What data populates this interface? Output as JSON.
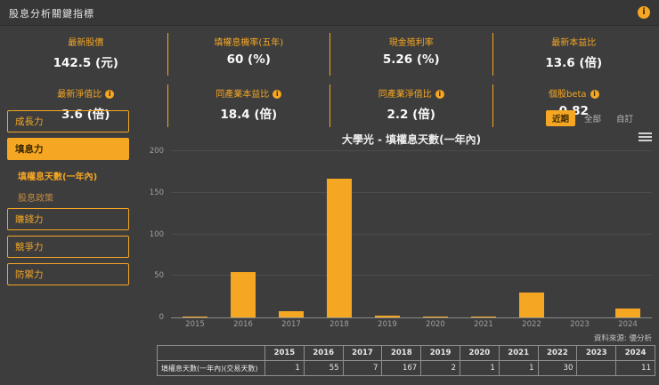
{
  "header": {
    "title": "股息分析關鍵指標",
    "info_label": "i"
  },
  "kpis": {
    "row1": [
      {
        "label": "最新股價",
        "value": "142.5 (元)",
        "has_info": false
      },
      {
        "label": "填權息機率(五年)",
        "value": "60 (%)",
        "has_info": false
      },
      {
        "label": "現金殖利率",
        "value": "5.26 (%)",
        "has_info": false
      },
      {
        "label": "最新本益比",
        "value": "13.6 (倍)",
        "has_info": false
      }
    ],
    "row2": [
      {
        "label": "最新淨值比",
        "value": "3.6 (倍)",
        "has_info": true
      },
      {
        "label": "同產業本益比",
        "value": "18.4 (倍)",
        "has_info": true
      },
      {
        "label": "同產業淨值比",
        "value": "2.2 (倍)",
        "has_info": true
      },
      {
        "label": "個股beta",
        "value": "0.82",
        "has_info": true
      }
    ]
  },
  "sidebar": {
    "entries": [
      {
        "label": "成長力",
        "type": "button",
        "active": false
      },
      {
        "label": "填息力",
        "type": "button",
        "active": true
      },
      {
        "label": "填權息天數(一年內)",
        "type": "sub",
        "selected": true
      },
      {
        "label": "股息政策",
        "type": "sub",
        "selected": false
      },
      {
        "label": "賺錢力",
        "type": "button",
        "active": false
      },
      {
        "label": "競爭力",
        "type": "button",
        "active": false
      },
      {
        "label": "防禦力",
        "type": "button",
        "active": false
      }
    ]
  },
  "range_buttons": [
    {
      "label": "近期",
      "active": true
    },
    {
      "label": "全部",
      "active": false
    },
    {
      "label": "自訂",
      "active": false
    }
  ],
  "chart_data": {
    "type": "bar",
    "title": "大學光 - 填權息天數(一年內)",
    "categories": [
      "2015",
      "2016",
      "2017",
      "2018",
      "2019",
      "2020",
      "2021",
      "2022",
      "2023",
      "2024"
    ],
    "values": [
      1,
      55,
      7,
      167,
      2,
      1,
      1,
      30,
      null,
      11
    ],
    "ylim": [
      0,
      200
    ],
    "yticks": [
      0,
      50,
      100,
      150,
      200
    ],
    "bar_color": "#f5a623",
    "grid": true,
    "legend": "none",
    "source": "資料來源: 優分析"
  },
  "table": {
    "row_label": "填權息天數(一年內)(交易天數)",
    "years": [
      "2015",
      "2016",
      "2017",
      "2018",
      "2019",
      "2020",
      "2021",
      "2022",
      "2023",
      "2024"
    ],
    "values": [
      "1",
      "55",
      "7",
      "167",
      "2",
      "1",
      "1",
      "30",
      "",
      "11"
    ]
  },
  "colors": {
    "accent": "#f5a623",
    "background": "#3d3d3d",
    "text": "#eaeaea",
    "muted": "#9f9f9f"
  }
}
